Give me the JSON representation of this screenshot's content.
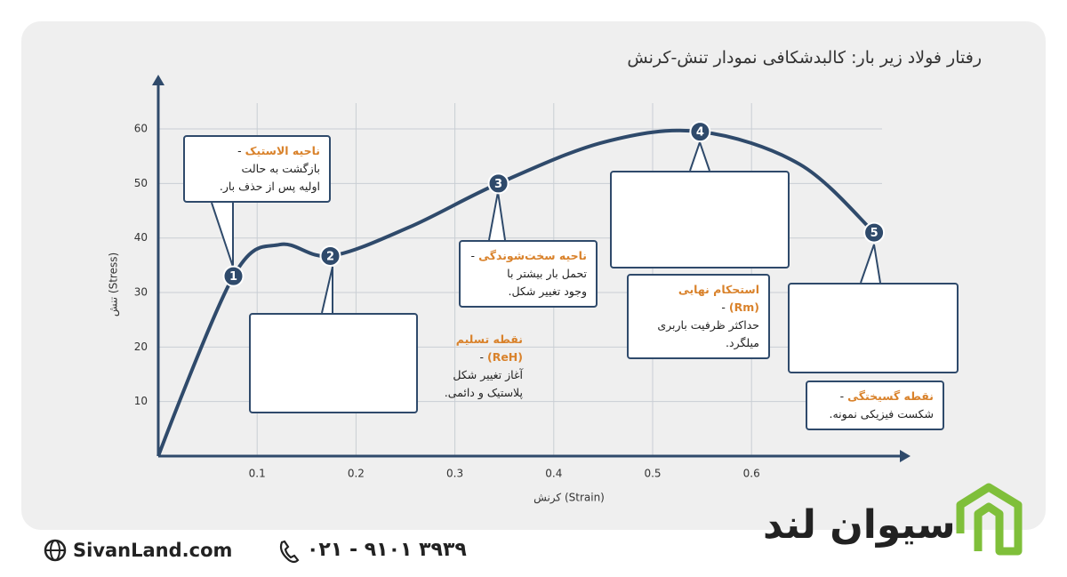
{
  "chart_data": {
    "type": "line",
    "title": "رفتار فولاد زیر بار: کالبدشکافی نمودار تنش-کرنش",
    "x_label": "کرنش (Strain)",
    "y_label": "تنش (Stress)",
    "x": [
      0,
      0.076,
      0.123,
      0.174,
      0.254,
      0.344,
      0.451,
      0.548,
      0.649,
      0.724
    ],
    "values": [
      0,
      33,
      38.8,
      36.7,
      42,
      50,
      57.6,
      59.5,
      53.5,
      41
    ],
    "point_labels": [
      null,
      "1",
      null,
      "2",
      null,
      "3",
      null,
      "4",
      null,
      "5"
    ],
    "color": "#2f4a6b",
    "xlim": [
      0,
      0.75
    ],
    "ylim": [
      0,
      68
    ],
    "xticks": [
      0.1,
      0.2,
      0.3,
      0.4,
      0.5,
      0.6
    ],
    "yticks": [
      10,
      20,
      30,
      40,
      50,
      60
    ],
    "grid": true,
    "annotations": [
      {
        "title": "ناحیه الاستیک",
        "lines": [
          "-",
          "بازگشت به حالت",
          "اولیه پس از حذف بار."
        ]
      },
      {
        "title": "نقطه تسلیم (ReH)",
        "lines": [
          "-",
          "آغاز تغییر شکل",
          "پلاستیک و دائمی."
        ]
      },
      {
        "title": "ناحیه سخت‌شوندگی",
        "lines": [
          "-",
          "تحمل بار بیشتر با",
          "وجود تغییر شکل."
        ]
      },
      {
        "title": "استحکام نهایی (Rm)",
        "lines": [
          "-",
          "حداکثر ظرفیت باربری",
          "میلگرد."
        ]
      },
      {
        "title": "نقطه گسیختگی",
        "lines": [
          "-",
          "شکست فیزیکی نمونه."
        ]
      }
    ]
  },
  "footer": {
    "brand": "سیوان لند",
    "website": "SivanLand.com",
    "phone": "۰۲۱ - ۹۱۰۱ ۳۹۳۹"
  }
}
